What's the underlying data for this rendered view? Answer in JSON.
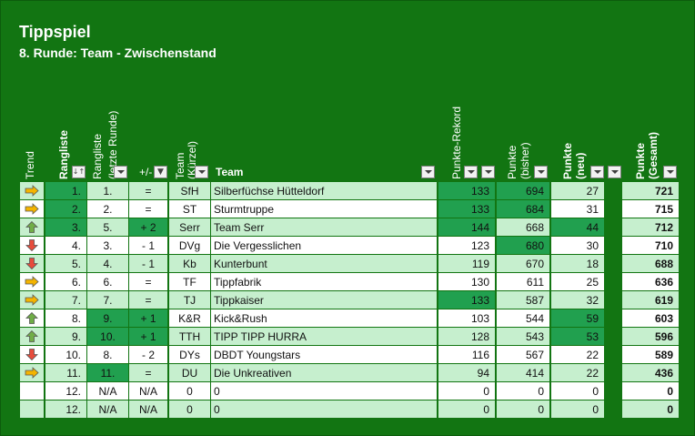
{
  "title": "Tippspiel",
  "subtitle": "8. Runde: Team - Zwischenstand",
  "headers": {
    "trend": "Trend",
    "rangliste": "Rangliste",
    "rangliste_prev_1": "Rangliste",
    "rangliste_prev_2": "(letzte Runde)",
    "plusminus": "+/-",
    "team_short_1": "Team",
    "team_short_2": "(Kürzel)",
    "team": "Team",
    "rekord": "Punkte-Rekord",
    "punkte_bisher_1": "Punkte",
    "punkte_bisher_2": "(bisher)",
    "punkte_neu_1": "Punkte",
    "punkte_neu_2": "(neu)",
    "punkte_gesamt_1": "Punkte",
    "punkte_gesamt_2": "(Gesamt)"
  },
  "colors": {
    "background": "#127512",
    "row_light": "#c6efce",
    "row_white": "#ffffff",
    "highlight": "#21a04f",
    "arrow_up": "#70ad47",
    "arrow_down": "#e74c3c",
    "arrow_right": "#f4b400"
  },
  "rows": [
    {
      "trend": "right-arrow-icon",
      "rank": "1.",
      "prev": "1.",
      "diff": "=",
      "short": "SfH",
      "team": "Silberfüchse Hütteldorf",
      "rekord": "133",
      "bisher": "694",
      "neu": "27",
      "gesamt": "721"
    },
    {
      "trend": "right-arrow-icon",
      "rank": "2.",
      "prev": "2.",
      "diff": "=",
      "short": "ST",
      "team": "Sturmtruppe",
      "rekord": "133",
      "bisher": "684",
      "neu": "31",
      "gesamt": "715"
    },
    {
      "trend": "up-arrow-icon",
      "rank": "3.",
      "prev": "5.",
      "diff": "+ 2",
      "short": "Serr",
      "team": "Team Serr",
      "rekord": "144",
      "bisher": "668",
      "neu": "44",
      "gesamt": "712"
    },
    {
      "trend": "down-arrow-icon",
      "rank": "4.",
      "prev": "3.",
      "diff": "- 1",
      "short": "DVg",
      "team": "Die Vergesslichen",
      "rekord": "123",
      "bisher": "680",
      "neu": "30",
      "gesamt": "710"
    },
    {
      "trend": "down-arrow-icon",
      "rank": "5.",
      "prev": "4.",
      "diff": "- 1",
      "short": "Kb",
      "team": "Kunterbunt",
      "rekord": "119",
      "bisher": "670",
      "neu": "18",
      "gesamt": "688"
    },
    {
      "trend": "right-arrow-icon",
      "rank": "6.",
      "prev": "6.",
      "diff": "=",
      "short": "TF",
      "team": "Tippfabrik",
      "rekord": "130",
      "bisher": "611",
      "neu": "25",
      "gesamt": "636"
    },
    {
      "trend": "right-arrow-icon",
      "rank": "7.",
      "prev": "7.",
      "diff": "=",
      "short": "TJ",
      "team": "Tippkaiser",
      "rekord": "133",
      "bisher": "587",
      "neu": "32",
      "gesamt": "619"
    },
    {
      "trend": "up-arrow-icon",
      "rank": "8.",
      "prev": "9.",
      "diff": "+ 1",
      "short": "K&R",
      "team": "Kick&Rush",
      "rekord": "103",
      "bisher": "544",
      "neu": "59",
      "gesamt": "603"
    },
    {
      "trend": "up-arrow-icon",
      "rank": "9.",
      "prev": "10.",
      "diff": "+ 1",
      "short": "TTH",
      "team": "TIPP TIPP HURRA",
      "rekord": "128",
      "bisher": "543",
      "neu": "53",
      "gesamt": "596"
    },
    {
      "trend": "down-arrow-icon",
      "rank": "10.",
      "prev": "8.",
      "diff": "- 2",
      "short": "DYs",
      "team": "DBDT Youngstars",
      "rekord": "116",
      "bisher": "567",
      "neu": "22",
      "gesamt": "589"
    },
    {
      "trend": "right-arrow-icon",
      "rank": "11.",
      "prev": "11.",
      "diff": "=",
      "short": "DU",
      "team": "Die Unkreativen",
      "rekord": "94",
      "bisher": "414",
      "neu": "22",
      "gesamt": "436"
    },
    {
      "trend": "",
      "rank": "12.",
      "prev": "N/A",
      "diff": "N/A",
      "short": "0",
      "team": "0",
      "rekord": "0",
      "bisher": "0",
      "neu": "0",
      "gesamt": "0"
    },
    {
      "trend": "",
      "rank": "12.",
      "prev": "N/A",
      "diff": "N/A",
      "short": "0",
      "team": "0",
      "rekord": "0",
      "bisher": "0",
      "neu": "0",
      "gesamt": "0"
    }
  ]
}
